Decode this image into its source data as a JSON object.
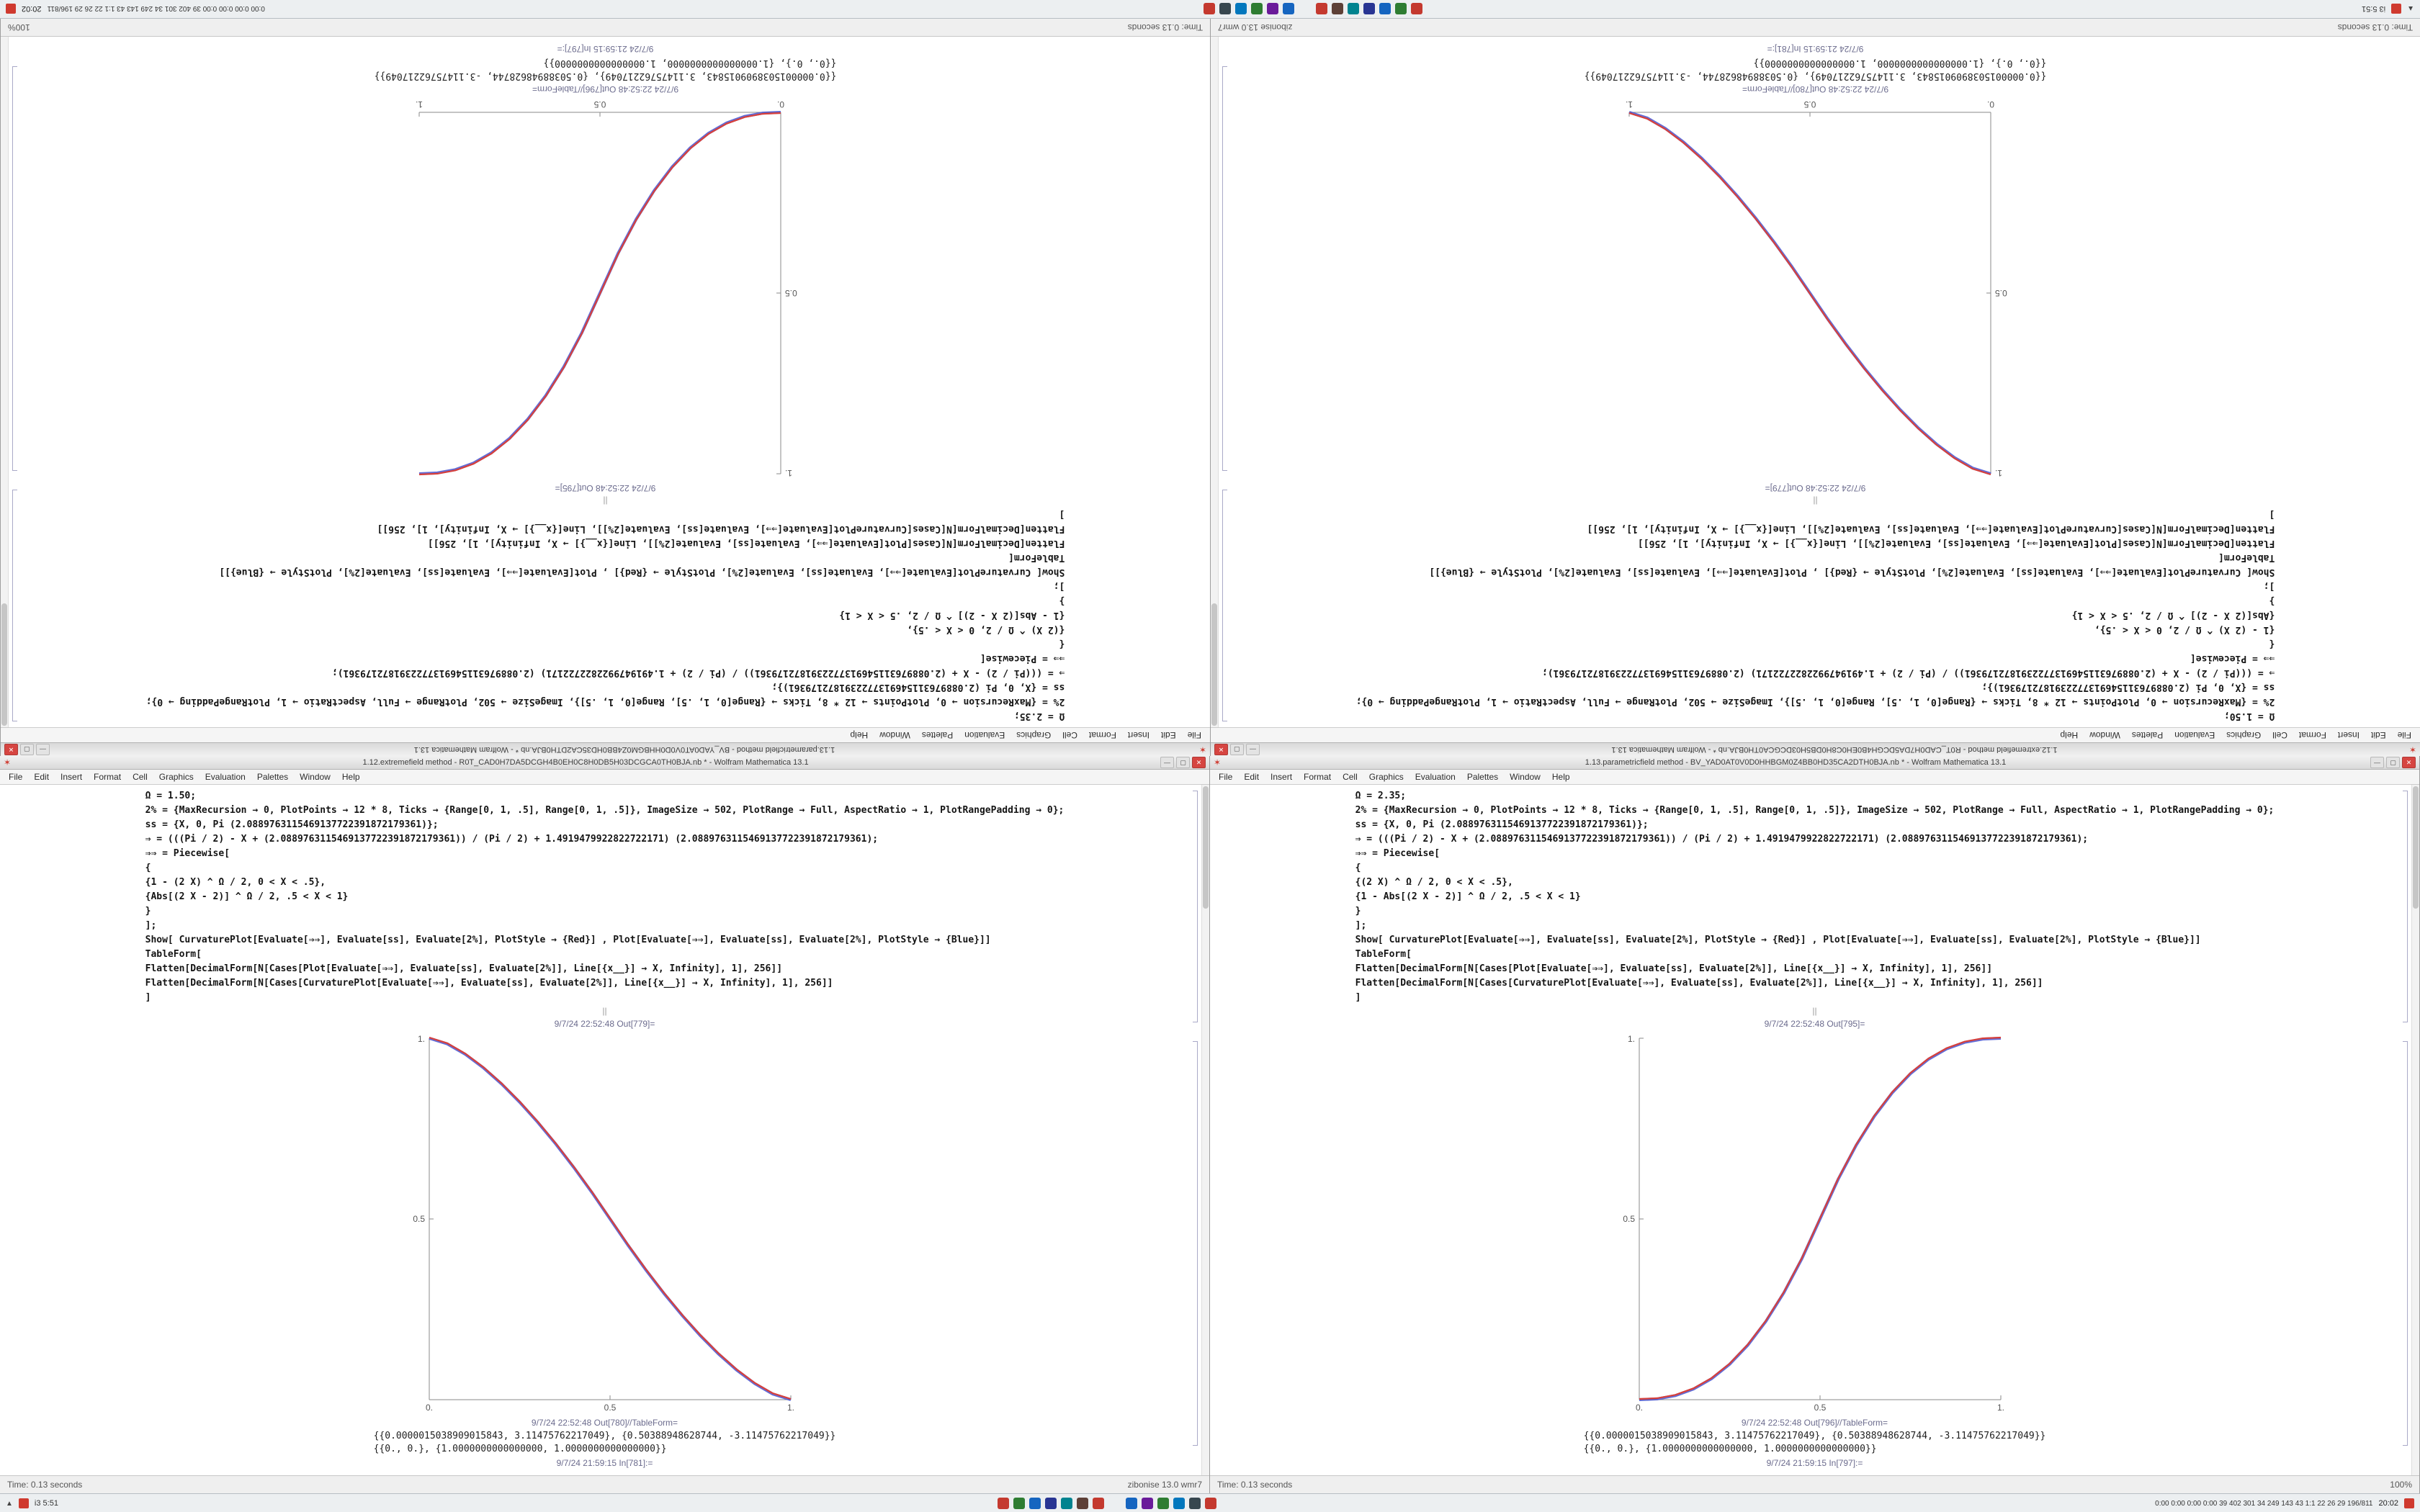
{
  "panel": {
    "left_label": "i3 5:51",
    "tray_left": [
      {
        "color": "#c4392f"
      },
      {
        "color": "#2e7d32"
      },
      {
        "color": "#1565c0"
      },
      {
        "color": "#283593"
      },
      {
        "color": "#00838f"
      },
      {
        "color": "#5d4037"
      },
      {
        "color": "#c4392f"
      }
    ],
    "tray_right": [
      {
        "color": "#1565c0"
      },
      {
        "color": "#6a1b9a"
      },
      {
        "color": "#2e7d32"
      },
      {
        "color": "#0277bd"
      },
      {
        "color": "#37474f"
      },
      {
        "color": "#c4392f"
      }
    ],
    "right_text": "0:00 0:00 0:00 0:00  39 402 301 34 249 143 43  1:1 22 26 29  196/811",
    "clock": "20:02"
  },
  "icons": {
    "app_glyph": "✶",
    "panel_up_glyph": "▲"
  },
  "controls": {
    "minimize": "—",
    "maximize": "▢",
    "close": "✕"
  },
  "menu": [
    "File",
    "Edit",
    "Insert",
    "Format",
    "Cell",
    "Graphics",
    "Evaluation",
    "Palettes",
    "Window",
    "Help"
  ],
  "windows": [
    {
      "title": "1.12.extremefield method - R0T_CAD0H7DA5DCGH4B0EH0C8H0DB5H03DCGCA0TH0BJA.nb * - Wolfram Mathematica 13.1",
      "status_left": "Time: 0.13 seconds",
      "status_right": "zibonise 13.0 wmr7",
      "cells": {
        "code_lines": [
          "Ω = 1.50;",
          "2% = {MaxRecursion → 0, PlotPoints → 12 * 8, Ticks → {Range[0, 1, .5], Range[0, 1, .5]}, ImageSize → 502, PlotRange → Full, AspectRatio → 1, PlotRangePadding → 0};",
          "ss = {X, 0, Pi (2.0889763115469137722391872179361)};",
          "⇒ = (((Pi / 2) - X + (2.0889763115469137722391872179361)) / (Pi / 2) + 1.4919479922822722171) (2.0889763115469137722391872179361);",
          "⇒⇒ = Piecewise[",
          "{",
          "{1 - (2 X) ^ Ω / 2, 0 < X < .5},",
          "{Abs[(2 X - 2)] ^ Ω / 2, .5 < X < 1}",
          "}",
          "];",
          "Show[ CurvaturePlot[Evaluate[⇒⇒], Evaluate[ss], Evaluate[2%], PlotStyle → {Red}] , Plot[Evaluate[⇒⇒], Evaluate[ss], Evaluate[2%], PlotStyle → {Blue}]]",
          "TableForm[",
          "Flatten[DecimalForm[N[Cases[Plot[Evaluate[⇒⇒], Evaluate[ss], Evaluate[2%]], Line[{x__}] → X, Infinity], 1], 256]]",
          "Flatten[DecimalForm[N[Cases[CurvaturePlot[Evaluate[⇒⇒], Evaluate[ss], Evaluate[2%]], Line[{x__}] → X, Infinity], 1], 256]]",
          "]"
        ],
        "divider": "||",
        "out_plot_label": "9/7/24 22:52:48 Out[779]=",
        "out_table_label": "9/7/24 22:52:48 Out[780]//TableForm=",
        "table_rows": [
          "{{0.0000015038909015843, 3.11475762217049}, {0.50388948628744, -3.11475762217049}}",
          "{{0., 0.}, {1.0000000000000000, 1.0000000000000000}}"
        ],
        "next_in_label": "9/7/24 21:59:15 In[781]:="
      },
      "plot": {
        "type": "line",
        "x_tick_labels": [
          "0.",
          "0.5",
          "1."
        ],
        "y_tick_labels": [
          "0.5",
          "1."
        ],
        "series_colors": [
          "#d8403a",
          "#4653d0"
        ],
        "x": [
          0,
          0.05,
          0.1,
          0.15,
          0.2,
          0.25,
          0.3,
          0.35,
          0.4,
          0.45,
          0.5,
          0.55,
          0.6,
          0.65,
          0.7,
          0.75,
          0.8,
          0.85,
          0.9,
          0.95,
          1
        ],
        "y": [
          1,
          0.9842,
          0.9553,
          0.9179,
          0.8735,
          0.8232,
          0.7676,
          0.7071,
          0.6422,
          0.5731,
          0.5,
          0.4269,
          0.3578,
          0.2929,
          0.2324,
          0.1768,
          0.1265,
          0.0821,
          0.0447,
          0.0158,
          0
        ]
      }
    },
    {
      "title": "1.13.parametricfield method - BV_YAD0AT0V0D0HHBGM0Z4BB0HD35CA2DTH0BJA.nb * - Wolfram Mathematica 13.1",
      "status_left": "Time: 0.13 seconds",
      "status_right": "100%",
      "cells": {
        "code_lines": [
          "Ω = 2.35;",
          "2% = {MaxRecursion → 0, PlotPoints → 12 * 8, Ticks → {Range[0, 1, .5], Range[0, 1, .5]}, ImageSize → 502, PlotRange → Full, AspectRatio → 1, PlotRangePadding → 0};",
          "ss = {X, 0, Pi (2.0889763115469137722391872179361)};",
          "⇒ = (((Pi / 2) - X + (2.0889763115469137722391872179361)) / (Pi / 2) + 1.4919479922822722171) (2.0889763115469137722391872179361);",
          "⇒⇒ = Piecewise[",
          "{",
          "{(2 X) ^ Ω / 2, 0 < X < .5},",
          "{1 - Abs[(2 X - 2)] ^ Ω / 2, .5 < X < 1}",
          "}",
          "];",
          "Show[ CurvaturePlot[Evaluate[⇒⇒], Evaluate[ss], Evaluate[2%], PlotStyle → {Red}] , Plot[Evaluate[⇒⇒], Evaluate[ss], Evaluate[2%], PlotStyle → {Blue}]]",
          "TableForm[",
          "Flatten[DecimalForm[N[Cases[Plot[Evaluate[⇒⇒], Evaluate[ss], Evaluate[2%]], Line[{x__}] → X, Infinity], 1], 256]]",
          "Flatten[DecimalForm[N[Cases[CurvaturePlot[Evaluate[⇒⇒], Evaluate[ss], Evaluate[2%]], Line[{x__}] → X, Infinity], 1], 256]]",
          "]"
        ],
        "divider": "||",
        "out_plot_label": "9/7/24 22:52:48 Out[795]=",
        "out_table_label": "9/7/24 22:52:48 Out[796]//TableForm=",
        "table_rows": [
          "{{0.0000015038909015843, 3.11475762217049}, {0.50388948628744, -3.11475762217049}}",
          "{{0., 0.}, {1.0000000000000000, 1.0000000000000000}}"
        ],
        "next_in_label": "9/7/24 21:59:15 In[797]:="
      },
      "plot": {
        "type": "line",
        "x_tick_labels": [
          "0.",
          "0.5",
          "1."
        ],
        "y_tick_labels": [
          "0.5",
          "1."
        ],
        "series_colors": [
          "#d8403a",
          "#4653d0"
        ],
        "x": [
          0,
          0.05,
          0.1,
          0.15,
          0.2,
          0.25,
          0.3,
          0.35,
          0.4,
          0.45,
          0.5,
          0.55,
          0.6,
          0.65,
          0.7,
          0.75,
          0.8,
          0.85,
          0.9,
          0.95,
          1
        ],
        "y": [
          0,
          0.0022,
          0.0114,
          0.0295,
          0.058,
          0.0981,
          0.1505,
          0.2163,
          0.296,
          0.3904,
          0.5,
          0.6096,
          0.704,
          0.7837,
          0.8495,
          0.9019,
          0.942,
          0.9705,
          0.9886,
          0.9978,
          1
        ]
      }
    }
  ]
}
